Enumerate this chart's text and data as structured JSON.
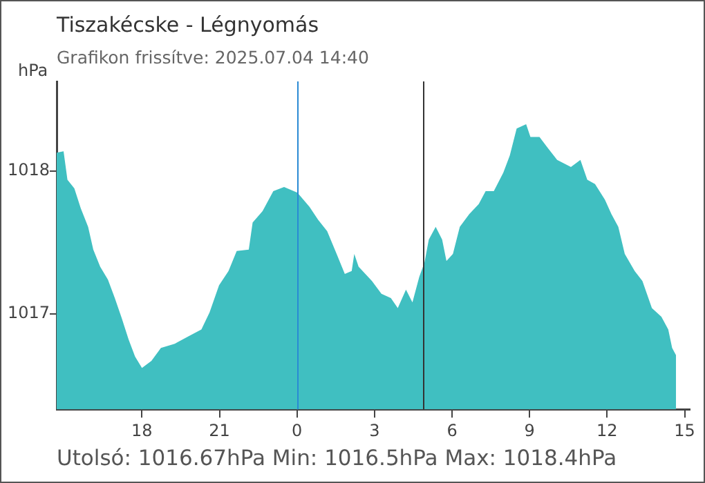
{
  "chart_data": {
    "type": "area",
    "title": "Tiszakécske - Légnyomás",
    "subtitle": "Grafikon frissítve: 2025.07.04 14:40",
    "ylabel": "hPa",
    "annotations": [
      "Utolsó: 1016.67hPa  Min: 1016.5hPa  Max: 1018.4hPa"
    ],
    "x": [
      "2025-07-03T14:42",
      "2025-07-03T14:58",
      "2025-07-03T15:07",
      "2025-07-03T15:23",
      "2025-07-03T15:38",
      "2025-07-03T15:55",
      "2025-07-03T16:07",
      "2025-07-03T16:23",
      "2025-07-03T16:41",
      "2025-07-03T16:57",
      "2025-07-03T17:13",
      "2025-07-03T17:29",
      "2025-07-03T17:44",
      "2025-07-03T18:00",
      "2025-07-03T18:22",
      "2025-07-03T18:44",
      "2025-07-03T19:16",
      "2025-07-03T19:47",
      "2025-07-03T20:18",
      "2025-07-03T20:37",
      "2025-07-03T20:59",
      "2025-07-03T21:21",
      "2025-07-03T21:40",
      "2025-07-03T22:08",
      "2025-07-03T22:17",
      "2025-07-03T22:40",
      "2025-07-03T23:05",
      "2025-07-03T23:30",
      "2025-07-04T00:01",
      "2025-07-04T00:29",
      "2025-07-04T00:49",
      "2025-07-04T01:10",
      "2025-07-04T01:32",
      "2025-07-04T01:51",
      "2025-07-04T02:07",
      "2025-07-04T02:13",
      "2025-07-04T02:23",
      "2025-07-04T02:54",
      "2025-07-04T03:16",
      "2025-07-04T03:38",
      "2025-07-04T03:54",
      "2025-07-04T04:13",
      "2025-07-04T04:28",
      "2025-07-04T04:44",
      "2025-07-04T04:56",
      "2025-07-04T05:06",
      "2025-07-04T05:22",
      "2025-07-04T05:37",
      "2025-07-04T05:47",
      "2025-07-04T06:02",
      "2025-07-04T06:18",
      "2025-07-04T06:40",
      "2025-07-04T07:02",
      "2025-07-04T07:18",
      "2025-07-04T07:37",
      "2025-07-04T07:59",
      "2025-07-04T08:14",
      "2025-07-04T08:30",
      "2025-07-04T08:52",
      "2025-07-04T09:02",
      "2025-07-04T09:23",
      "2025-07-04T09:43",
      "2025-07-04T10:04",
      "2025-07-04T10:36",
      "2025-07-04T10:58",
      "2025-07-04T11:14",
      "2025-07-04T11:32",
      "2025-07-04T11:55",
      "2025-07-04T12:10",
      "2025-07-04T12:26",
      "2025-07-04T12:41",
      "2025-07-04T13:04",
      "2025-07-04T13:22",
      "2025-07-04T13:44",
      "2025-07-04T14:06",
      "2025-07-04T14:22",
      "2025-07-04T14:31",
      "2025-07-04T14:40"
    ],
    "values": [
      1018.13,
      1018.14,
      1017.94,
      1017.88,
      1017.74,
      1017.61,
      1017.45,
      1017.33,
      1017.24,
      1017.11,
      1016.97,
      1016.82,
      1016.7,
      1016.62,
      1016.67,
      1016.76,
      1016.79,
      1016.84,
      1016.89,
      1017.01,
      1017.2,
      1017.3,
      1017.44,
      1017.45,
      1017.64,
      1017.72,
      1017.86,
      1017.89,
      1017.85,
      1017.75,
      1017.66,
      1017.58,
      1017.42,
      1017.28,
      1017.3,
      1017.42,
      1017.33,
      1017.23,
      1017.14,
      1017.11,
      1017.04,
      1017.17,
      1017.08,
      1017.26,
      1017.36,
      1017.52,
      1017.61,
      1017.52,
      1017.37,
      1017.42,
      1017.61,
      1017.7,
      1017.77,
      1017.86,
      1017.86,
      1017.99,
      1018.11,
      1018.3,
      1018.33,
      1018.24,
      1018.24,
      1018.16,
      1018.08,
      1018.03,
      1018.08,
      1017.94,
      1017.91,
      1017.8,
      1017.7,
      1017.61,
      1017.42,
      1017.3,
      1017.23,
      1017.04,
      1016.98,
      1016.89,
      1016.76,
      1016.71
    ],
    "color": "#40bfc1",
    "xlim": [
      "2025-07-03T14:42",
      "2025-07-04T15:12"
    ],
    "xticks": [
      {
        "value": "2025-07-03T18:00",
        "label": "18"
      },
      {
        "value": "2025-07-03T21:00",
        "label": "21"
      },
      {
        "value": "2025-07-04T00:00",
        "label": "0"
      },
      {
        "value": "2025-07-04T03:00",
        "label": "3"
      },
      {
        "value": "2025-07-04T06:00",
        "label": "6"
      },
      {
        "value": "2025-07-04T09:00",
        "label": "9"
      },
      {
        "value": "2025-07-04T12:00",
        "label": "12"
      },
      {
        "value": "2025-07-04T15:00",
        "label": "15"
      }
    ],
    "ylim": [
      1016.33,
      1018.63
    ],
    "yticks": [
      1017,
      1018
    ],
    "ref_lines": [
      {
        "axis": "x",
        "value": "2025-07-04T00:00",
        "color": "#2a8ad4"
      },
      {
        "axis": "x",
        "value": "2025-07-04T04:54",
        "color": "#333333"
      }
    ],
    "legend": false
  }
}
